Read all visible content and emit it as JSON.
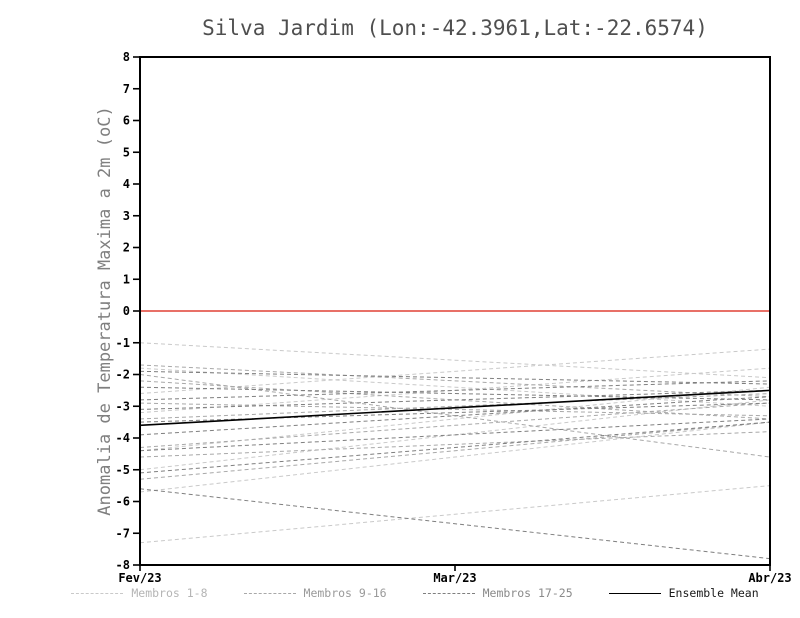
{
  "title": "Silva Jardim (Lon:-42.3961,Lat:-22.6574)",
  "chart_data": {
    "type": "line",
    "title": "Silva Jardim (Lon:-42.3961,Lat:-22.6574)",
    "xlabel": "",
    "ylabel": "Anomalia de Temperatura Maxima a 2m (oC)",
    "ylim": [
      -8,
      8
    ],
    "y_tick_step": 1,
    "grid": false,
    "x": [
      0,
      0.5,
      1
    ],
    "x_ticks": [
      "Fev/23",
      "Mar/23",
      "Abr/23"
    ],
    "zero_line": {
      "y": 0,
      "color": "#e14135"
    },
    "groups": [
      {
        "name": "Membros 1-8",
        "color": "#c9c9c9",
        "dash": true,
        "members": [
          [
            -1.0,
            -1.55,
            -2.1
          ],
          [
            -1.8,
            -2.4,
            -3.0
          ],
          [
            -2.6,
            -1.9,
            -1.2
          ],
          [
            -3.2,
            -2.5,
            -1.8
          ],
          [
            -4.4,
            -3.4,
            -2.4
          ],
          [
            -5.0,
            -3.9,
            -2.8
          ],
          [
            -5.7,
            -4.6,
            -3.5
          ],
          [
            -7.3,
            -6.4,
            -5.5
          ]
        ]
      },
      {
        "name": "Membros 9-16",
        "color": "#a8a8a8",
        "dash": true,
        "members": [
          [
            -1.7,
            -2.2,
            -2.7
          ],
          [
            -2.2,
            -2.8,
            -3.4
          ],
          [
            -2.9,
            -3.1,
            -3.3
          ],
          [
            -3.4,
            -3.0,
            -2.6
          ],
          [
            -4.3,
            -3.6,
            -2.9
          ],
          [
            -4.6,
            -4.2,
            -3.8
          ],
          [
            -5.3,
            -4.4,
            -3.5
          ],
          [
            -2.0,
            -3.3,
            -4.6
          ]
        ]
      },
      {
        "name": "Membros 17-25",
        "color": "#7f7f7f",
        "dash": true,
        "members": [
          [
            -1.9,
            -2.1,
            -2.3
          ],
          [
            -2.4,
            -2.6,
            -2.8
          ],
          [
            -2.8,
            -2.5,
            -2.2
          ],
          [
            -3.1,
            -2.8,
            -2.5
          ],
          [
            -3.5,
            -3.2,
            -2.9
          ],
          [
            -3.9,
            -3.3,
            -2.7
          ],
          [
            -4.4,
            -3.9,
            -3.4
          ],
          [
            -5.1,
            -4.3,
            -3.5
          ],
          [
            -5.6,
            -6.7,
            -7.8
          ]
        ]
      }
    ],
    "mean": {
      "name": "Ensemble Mean",
      "color": "#000000",
      "values": [
        -3.6,
        -3.05,
        -2.5
      ]
    },
    "legend": [
      {
        "label": "Membros 1-8",
        "color": "#c9c9c9",
        "style": "dashed",
        "text_color": "#b5b5b5"
      },
      {
        "label": "Membros 9-16",
        "color": "#a8a8a8",
        "style": "dashed",
        "text_color": "#9a9a9a"
      },
      {
        "label": "Membros 17-25",
        "color": "#7f7f7f",
        "style": "dashed",
        "text_color": "#8a8a8a"
      },
      {
        "label": "Ensemble Mean",
        "color": "#000000",
        "style": "solid",
        "text_color": "#1a1a1a"
      }
    ]
  }
}
